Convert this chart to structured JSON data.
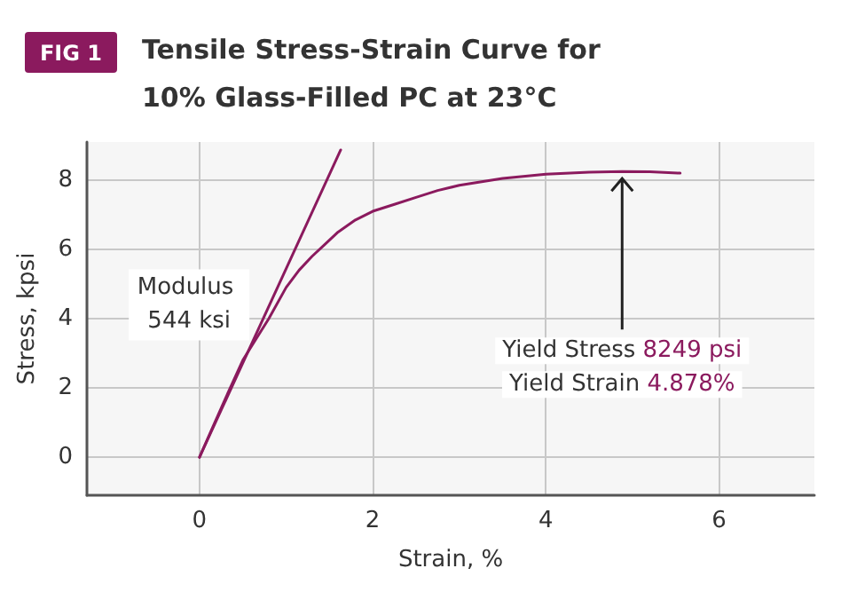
{
  "chart_data": {
    "type": "line",
    "title": "Tensile Stress-Strain Curve for 10% Glass-Filled PC at 23°C",
    "xlabel": "Strain, %",
    "ylabel": "Stress, kpsi",
    "series": [
      {
        "color": "#8b1a5e",
        "x": [
          0,
          0.15,
          0.3,
          0.5,
          0.8,
          1.0,
          1.15,
          1.3,
          1.45,
          1.6,
          1.8,
          2.0,
          2.25,
          2.5,
          2.75,
          3.0,
          3.5,
          4.0,
          4.5,
          4.88,
          5.2,
          5.55
        ],
        "values": [
          0,
          0.85,
          1.7,
          2.8,
          4.0,
          4.9,
          5.4,
          5.8,
          6.15,
          6.5,
          6.85,
          7.1,
          7.3,
          7.5,
          7.7,
          7.85,
          8.05,
          8.17,
          8.23,
          8.25,
          8.24,
          8.2
        ]
      },
      {
        "color": "#8b1a5e",
        "x": [
          0,
          1.63
        ],
        "values": [
          0,
          8.87
        ]
      }
    ],
    "xlim": [
      -1.3,
      7.1
    ],
    "ylim": [
      -1.1,
      9.1
    ],
    "xticks": [
      0,
      2,
      4,
      6
    ],
    "yticks": [
      0,
      2,
      4,
      6,
      8
    ],
    "grid": true,
    "marker": "none",
    "line_style": "solid",
    "annotations": [
      "FIG 1",
      "Modulus 544 ksi",
      {
        "text": "Yield Stress 8249 psi",
        "x": 4.88,
        "y": 8.25
      },
      "Yield Strain 4.878%"
    ]
  }
}
